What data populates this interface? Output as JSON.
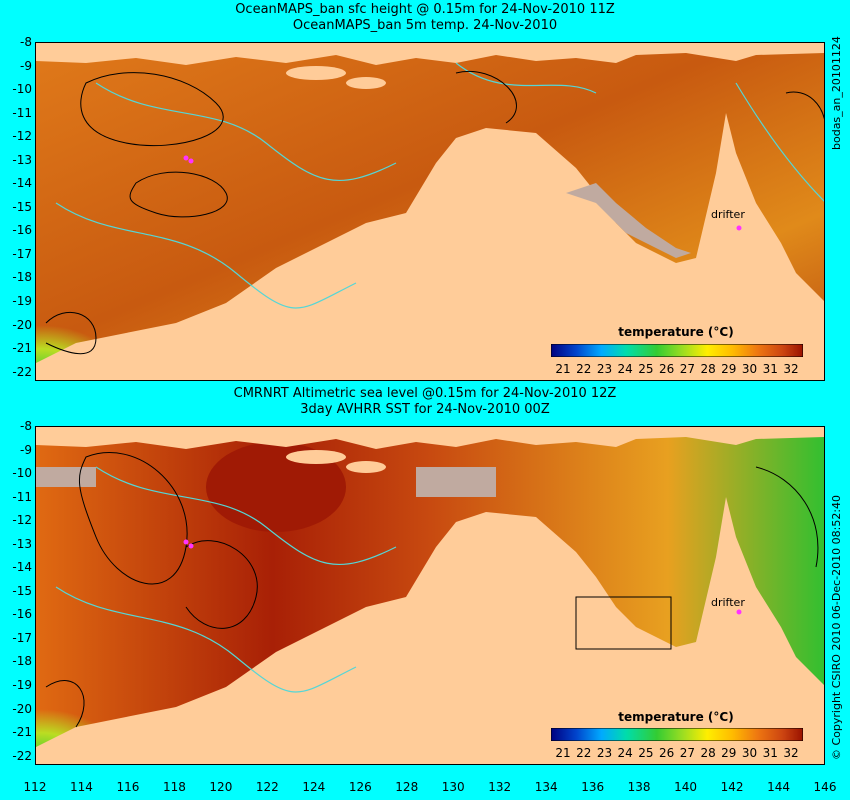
{
  "top": {
    "title_line1": "OceanMAPS_ban sfc height @ 0.15m for 24-Nov-2010 11Z",
    "title_line2": "OceanMAPS_ban 5m temp. 24-Nov-2010",
    "side_label": "bodas_an_20101124",
    "colorbar_title": "temperature (°C)",
    "drifter_label": "drifter"
  },
  "bottom": {
    "title_line1": "CMRNRT Altimetric sea level  @0.15m  for 24-Nov-2010 12Z",
    "title_line2": "3day AVHRR SST for 24-Nov-2010 00Z",
    "side_label": "© Copyright CSIRO 2010   06-Dec-2010 08:52:40",
    "colorbar_title": "temperature (°C)",
    "drifter_label": "drifter"
  },
  "y_ticks": [
    "-8",
    "-9",
    "-10",
    "-11",
    "-12",
    "-13",
    "-14",
    "-15",
    "-16",
    "-17",
    "-18",
    "-19",
    "-20",
    "-21",
    "-22"
  ],
  "x_ticks": [
    "112",
    "114",
    "116",
    "118",
    "120",
    "122",
    "124",
    "126",
    "128",
    "130",
    "132",
    "134",
    "136",
    "138",
    "140",
    "142",
    "144",
    "146"
  ],
  "colorbar_ticks": [
    "21",
    "22",
    "23",
    "24",
    "25",
    "26",
    "27",
    "28",
    "29",
    "30",
    "31",
    "32"
  ],
  "colors": {
    "background": "#00ffff",
    "land": "#ffcc99",
    "contour": "#55d6d6",
    "ssh_contour": "#000000",
    "drifter": "#ff33ff",
    "missing": "#c0aaa0"
  }
}
